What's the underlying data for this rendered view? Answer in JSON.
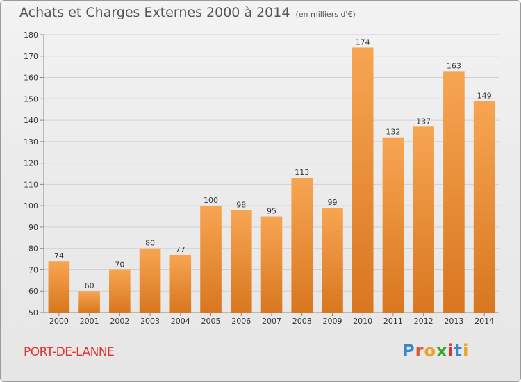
{
  "header": {
    "title": "Achats et Charges Externes 2000 à 2014",
    "unit": "(en milliers d'€)"
  },
  "footer": {
    "commune": "PORT-DE-LANNE",
    "logo_letters": [
      "P",
      "r",
      "o",
      "x",
      "i",
      "t",
      "i"
    ],
    "logo_colors": [
      "#3a86c8",
      "#e0552d",
      "#f0a020",
      "#3aa535",
      "#e0332d",
      "#3a86c8",
      "#f0a020"
    ]
  },
  "colors": {
    "bar_top": "#f7a552",
    "bar_bottom": "#d8771f",
    "grid": "#d0d0d0",
    "axis": "#888888"
  },
  "chart_data": {
    "type": "bar",
    "title": "Achats et Charges Externes 2000 à 2014",
    "subtitle": "(en milliers d'€)",
    "xlabel": "",
    "ylabel": "",
    "categories": [
      "2000",
      "2001",
      "2002",
      "2003",
      "2004",
      "2005",
      "2006",
      "2007",
      "2008",
      "2009",
      "2010",
      "2011",
      "2012",
      "2013",
      "2014"
    ],
    "values": [
      74,
      60,
      70,
      80,
      77,
      100,
      98,
      95,
      113,
      99,
      174,
      132,
      137,
      163,
      149
    ],
    "ylim": [
      50,
      180
    ],
    "yticks": [
      50,
      60,
      70,
      80,
      90,
      100,
      110,
      120,
      130,
      140,
      150,
      160,
      170,
      180
    ],
    "grid": true,
    "legend": "none"
  }
}
